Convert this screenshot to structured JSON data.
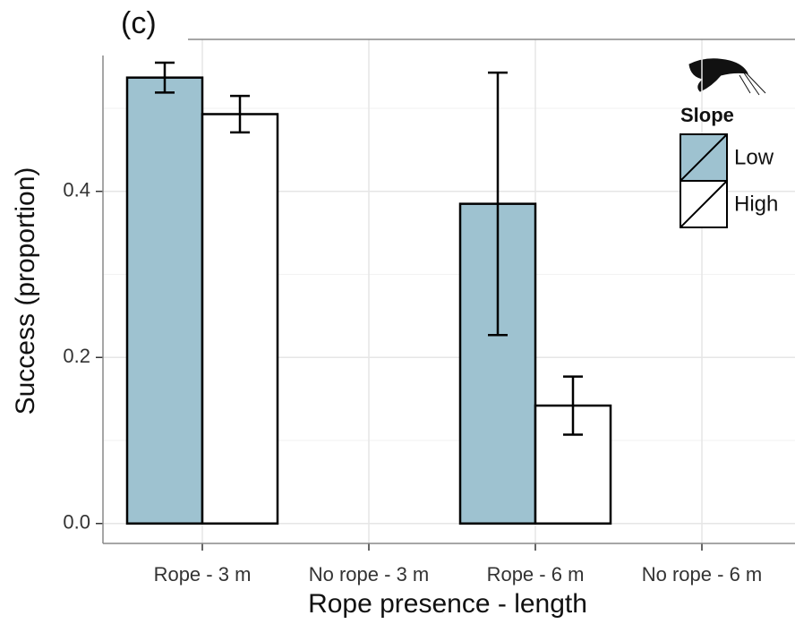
{
  "chart_data": {
    "type": "bar",
    "title": "(c)",
    "x_label": "Rope presence - length",
    "y_label": "Success (proportion)",
    "categories": [
      "Rope - 3 m",
      "No rope - 3 m",
      "Rope - 6 m",
      "No rope - 6 m"
    ],
    "series": [
      {
        "name": "Low",
        "color": "#9ec2d0",
        "values": [
          0.537,
          0,
          0.385,
          0
        ],
        "errors": [
          0.018,
          0,
          0.158,
          0
        ]
      },
      {
        "name": "High",
        "color": "#ffffff",
        "values": [
          0.493,
          0,
          0.142,
          0
        ],
        "errors": [
          0.022,
          0,
          0.035,
          0
        ]
      }
    ],
    "legend_title": "Slope",
    "ylim": [
      -0.024,
      0.583
    ],
    "yticks": [
      {
        "value": 0,
        "label": "0.0"
      },
      0.2,
      0.4
    ],
    "minor_yticks": [
      0.1,
      0.3,
      0.5
    ],
    "grid": true
  }
}
